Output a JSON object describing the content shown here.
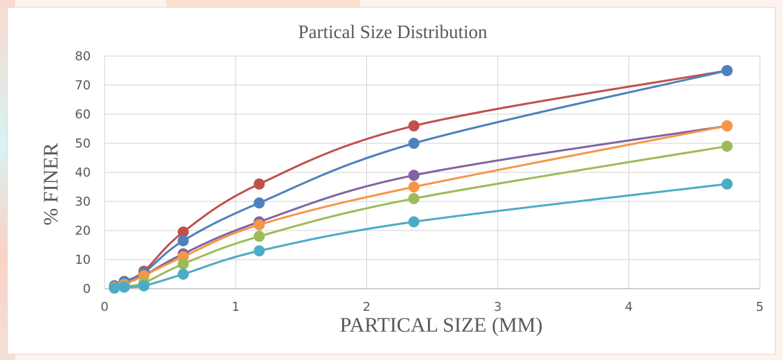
{
  "chart_data": {
    "type": "scatter",
    "title": "Partical Size Distribution",
    "xlabel": "PARTICAL SIZE (MM)",
    "ylabel": "% FINER",
    "xlim": [
      0,
      5
    ],
    "ylim": [
      0,
      80
    ],
    "x_ticks": [
      "0",
      "1",
      "2",
      "3",
      "4",
      "5"
    ],
    "y_ticks": [
      "0",
      "10",
      "20",
      "30",
      "40",
      "50",
      "60",
      "70",
      "80"
    ],
    "grid": true,
    "legend": "none",
    "smooth_lines": true,
    "x": [
      0.075,
      0.15,
      0.3,
      0.6,
      1.18,
      2.36,
      4.75
    ],
    "series": [
      {
        "color": "#c0504d",
        "values": [
          1,
          2.5,
          6,
          19.5,
          36,
          56,
          75
        ]
      },
      {
        "color": "#4f81bd",
        "values": [
          1,
          2.5,
          5.5,
          16.5,
          29.5,
          50,
          75
        ]
      },
      {
        "color": "#8064a2",
        "values": [
          0.5,
          1.5,
          4.5,
          12,
          23,
          39,
          56
        ]
      },
      {
        "color": "#f79646",
        "values": [
          0.5,
          1.5,
          4.5,
          11,
          22,
          35,
          56
        ]
      },
      {
        "color": "#9bbb59",
        "values": [
          0.3,
          0.8,
          2,
          8.5,
          18,
          31,
          49
        ]
      },
      {
        "color": "#4bacc6",
        "values": [
          0.2,
          0.5,
          1,
          5,
          13,
          23,
          36
        ]
      }
    ]
  }
}
